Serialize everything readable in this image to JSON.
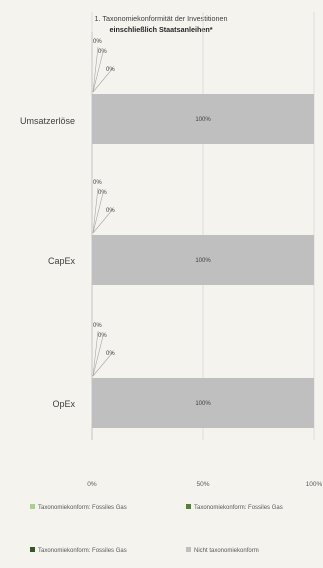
{
  "chart_data": {
    "type": "bar",
    "orientation": "horizontal",
    "stacked": true,
    "title_line1": "1. Taxonomiekonformität der Investitionen",
    "title_line2": "einschließlich Staatsanleihen*",
    "categories": [
      "Umsatzerlöse",
      "CapEx",
      "OpEx"
    ],
    "series": [
      {
        "name": "Taxonomiekonform: Fossiles Gas",
        "color": "#a9d18e",
        "values": [
          0,
          0,
          0
        ],
        "labels": [
          "0%",
          "0%",
          "0%"
        ]
      },
      {
        "name": "Taxonomiekonform: Fossiles Gas",
        "color": "#548235",
        "values": [
          0,
          0,
          0
        ],
        "labels": [
          "0%",
          "0%",
          "0%"
        ]
      },
      {
        "name": "Taxonomiekonform: Fossiles Gas",
        "color": "#375623",
        "values": [
          0,
          0,
          0
        ],
        "labels": [
          "0%",
          "0%",
          "0%"
        ]
      },
      {
        "name": "Nicht taxonomiekonform",
        "color": "#bfbfbf",
        "values": [
          100,
          100,
          100
        ],
        "labels": [
          "100%",
          "100%",
          "100%"
        ]
      }
    ],
    "xlim": [
      0,
      100
    ],
    "x_ticks": [
      {
        "value": 0,
        "label": "0%"
      },
      {
        "value": 50,
        "label": "50%"
      },
      {
        "value": 100,
        "label": "100%"
      }
    ],
    "grid": true,
    "legend_position": "bottom"
  }
}
